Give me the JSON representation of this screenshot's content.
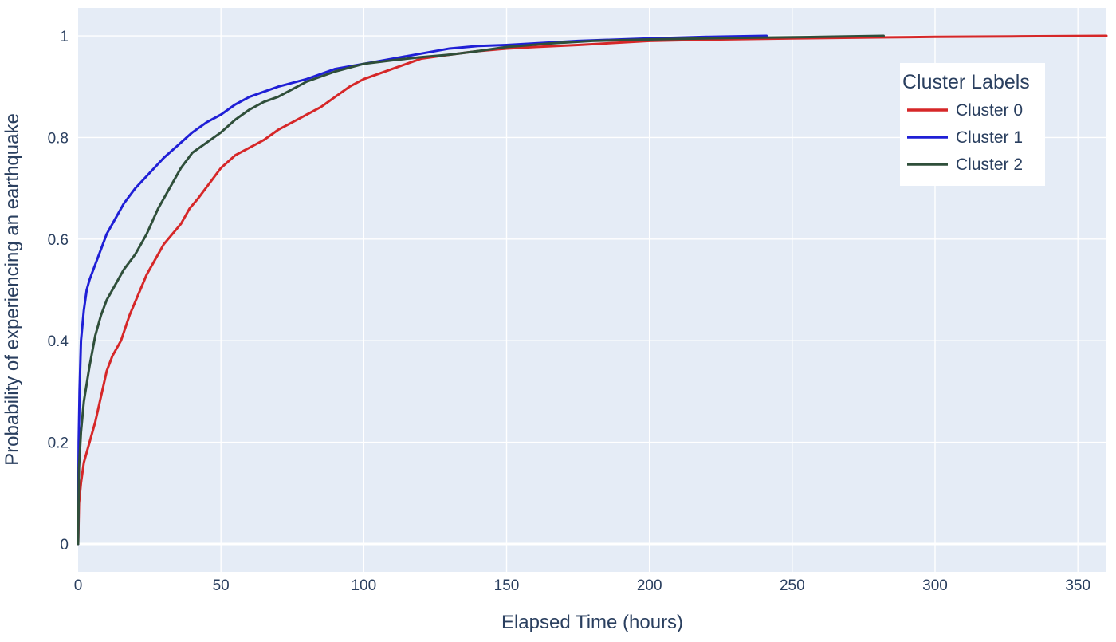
{
  "chart_data": {
    "type": "line",
    "title": "",
    "xlabel": "Elapsed Time (hours)",
    "ylabel": "Probability of experiencing an earthquake",
    "xlim": [
      0,
      360
    ],
    "ylim": [
      -0.055,
      1.055
    ],
    "x_ticks": [
      0,
      50,
      100,
      150,
      200,
      250,
      300,
      350
    ],
    "y_ticks": [
      0,
      0.2,
      0.4,
      0.6,
      0.8,
      1
    ],
    "x_tick_labels": [
      "0",
      "50",
      "100",
      "150",
      "200",
      "250",
      "300",
      "350"
    ],
    "y_tick_labels": [
      "0",
      "0.2",
      "0.4",
      "0.6",
      "0.8",
      "1"
    ],
    "grid": true,
    "background": "#e5ecf6",
    "legend": {
      "title": "Cluster Labels",
      "placement": "top-right"
    },
    "series": [
      {
        "name": "Cluster 0",
        "color": "#d62728",
        "points": [
          [
            0,
            0
          ],
          [
            0.3,
            0.08
          ],
          [
            1,
            0.12
          ],
          [
            2,
            0.16
          ],
          [
            4,
            0.2
          ],
          [
            6,
            0.24
          ],
          [
            8,
            0.29
          ],
          [
            10,
            0.34
          ],
          [
            12,
            0.37
          ],
          [
            15,
            0.4
          ],
          [
            18,
            0.45
          ],
          [
            21,
            0.49
          ],
          [
            24,
            0.53
          ],
          [
            27,
            0.56
          ],
          [
            30,
            0.59
          ],
          [
            33,
            0.61
          ],
          [
            36,
            0.63
          ],
          [
            39,
            0.66
          ],
          [
            42,
            0.68
          ],
          [
            46,
            0.71
          ],
          [
            50,
            0.74
          ],
          [
            55,
            0.765
          ],
          [
            60,
            0.78
          ],
          [
            65,
            0.795
          ],
          [
            70,
            0.815
          ],
          [
            75,
            0.83
          ],
          [
            80,
            0.845
          ],
          [
            85,
            0.86
          ],
          [
            90,
            0.88
          ],
          [
            95,
            0.9
          ],
          [
            100,
            0.915
          ],
          [
            105,
            0.925
          ],
          [
            110,
            0.935
          ],
          [
            115,
            0.945
          ],
          [
            120,
            0.955
          ],
          [
            130,
            0.963
          ],
          [
            140,
            0.97
          ],
          [
            150,
            0.975
          ],
          [
            160,
            0.978
          ],
          [
            175,
            0.982
          ],
          [
            200,
            0.99
          ],
          [
            225,
            0.993
          ],
          [
            250,
            0.995
          ],
          [
            280,
            0.997
          ],
          [
            300,
            0.998
          ],
          [
            330,
            0.999
          ],
          [
            360,
            1
          ]
        ]
      },
      {
        "name": "Cluster 1",
        "color": "#1f1fd6",
        "points": [
          [
            0,
            0
          ],
          [
            0.2,
            0.2
          ],
          [
            0.5,
            0.3
          ],
          [
            1,
            0.4
          ],
          [
            2,
            0.46
          ],
          [
            3,
            0.5
          ],
          [
            4,
            0.52
          ],
          [
            6,
            0.55
          ],
          [
            8,
            0.58
          ],
          [
            10,
            0.61
          ],
          [
            13,
            0.64
          ],
          [
            16,
            0.67
          ],
          [
            20,
            0.7
          ],
          [
            25,
            0.73
          ],
          [
            30,
            0.76
          ],
          [
            35,
            0.785
          ],
          [
            40,
            0.81
          ],
          [
            45,
            0.83
          ],
          [
            50,
            0.845
          ],
          [
            55,
            0.865
          ],
          [
            60,
            0.88
          ],
          [
            65,
            0.89
          ],
          [
            70,
            0.9
          ],
          [
            80,
            0.915
          ],
          [
            90,
            0.935
          ],
          [
            100,
            0.945
          ],
          [
            110,
            0.955
          ],
          [
            120,
            0.965
          ],
          [
            130,
            0.975
          ],
          [
            140,
            0.98
          ],
          [
            150,
            0.982
          ],
          [
            175,
            0.99
          ],
          [
            200,
            0.995
          ],
          [
            220,
            0.998
          ],
          [
            241,
            1
          ]
        ]
      },
      {
        "name": "Cluster 2",
        "color": "#2f4f3a",
        "points": [
          [
            0,
            0
          ],
          [
            0.3,
            0.15
          ],
          [
            1,
            0.22
          ],
          [
            2,
            0.28
          ],
          [
            4,
            0.35
          ],
          [
            6,
            0.41
          ],
          [
            8,
            0.45
          ],
          [
            10,
            0.48
          ],
          [
            13,
            0.51
          ],
          [
            16,
            0.54
          ],
          [
            20,
            0.57
          ],
          [
            24,
            0.61
          ],
          [
            28,
            0.66
          ],
          [
            32,
            0.7
          ],
          [
            36,
            0.74
          ],
          [
            40,
            0.77
          ],
          [
            45,
            0.79
          ],
          [
            50,
            0.81
          ],
          [
            55,
            0.835
          ],
          [
            60,
            0.855
          ],
          [
            65,
            0.87
          ],
          [
            70,
            0.88
          ],
          [
            75,
            0.895
          ],
          [
            80,
            0.91
          ],
          [
            90,
            0.93
          ],
          [
            100,
            0.945
          ],
          [
            110,
            0.952
          ],
          [
            120,
            0.958
          ],
          [
            130,
            0.963
          ],
          [
            140,
            0.97
          ],
          [
            150,
            0.978
          ],
          [
            165,
            0.985
          ],
          [
            180,
            0.99
          ],
          [
            200,
            0.993
          ],
          [
            230,
            0.996
          ],
          [
            260,
            0.998
          ],
          [
            282,
            1
          ]
        ]
      }
    ]
  }
}
